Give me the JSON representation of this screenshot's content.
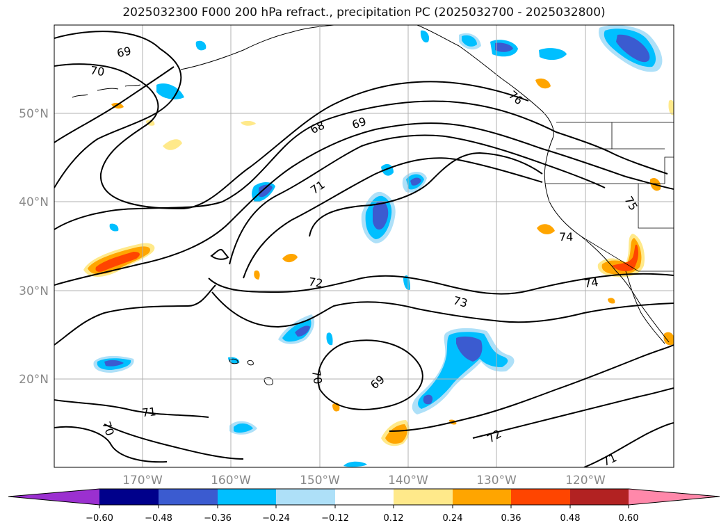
{
  "title": "2025032300 F000 200 hPa refract., precipitation PC (2025032700 - 2025032800)",
  "lat_labels": [
    "50°N",
    "40°N",
    "30°N",
    "20°N"
  ],
  "lon_labels": [
    "170°W",
    "160°W",
    "150°W",
    "140°W",
    "130°W",
    "120°W"
  ],
  "contour_labels": [
    {
      "text": "69"
    },
    {
      "text": "70"
    },
    {
      "text": "68"
    },
    {
      "text": "69"
    },
    {
      "text": "71"
    },
    {
      "text": "72"
    },
    {
      "text": "73"
    },
    {
      "text": "74"
    },
    {
      "text": "74"
    },
    {
      "text": "70"
    },
    {
      "text": "69"
    },
    {
      "text": "71"
    },
    {
      "text": "70"
    },
    {
      "text": "72"
    },
    {
      "text": "71"
    },
    {
      "text": "75"
    },
    {
      "text": "76"
    }
  ],
  "colorbar": {
    "ticks": [
      "−0.60",
      "−0.48",
      "−0.36",
      "−0.24",
      "−0.12",
      "0.12",
      "0.24",
      "0.36",
      "0.48",
      "0.60"
    ],
    "colors": {
      "neg_extend": "#9b30d0",
      "n060": "#00008b",
      "n048": "#3b5bd0",
      "n036": "#00bfff",
      "n024": "#aee0f8",
      "neutral": "#ffffff",
      "p012": "#ffe98a",
      "p024": "#ffa500",
      "p036": "#ff4500",
      "p048": "#b22222",
      "pos_extend": "#ff88aa"
    }
  }
}
